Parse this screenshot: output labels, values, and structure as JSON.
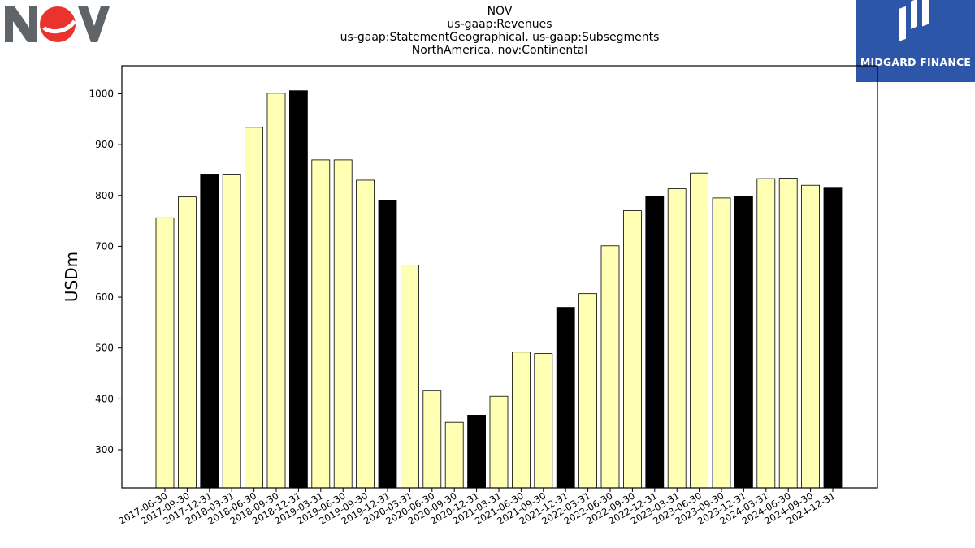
{
  "title_lines": [
    "NOV",
    "us-gaap:Revenues",
    "us-gaap:StatementGeographical, us-gaap:Subsegments",
    "NorthAmerica, nov:Continental"
  ],
  "logos": {
    "left_text": "NOV",
    "right_text": "MIDGARD FINANCE",
    "right_bg_color": "#2d55a8"
  },
  "chart_data": {
    "type": "bar",
    "title": "NOV\nus-gaap:Revenues\nus-gaap:StatementGeographical, us-gaap:Subsegments\nNorthAmerica, nov:Continental",
    "xlabel": "",
    "ylabel": "USDm",
    "ylim": [
      225,
      1055
    ],
    "yticks": [
      300,
      400,
      500,
      600,
      700,
      800,
      900,
      1000
    ],
    "grid": false,
    "colors": {
      "default": "#ffffb3",
      "year_end": "#000000",
      "edge": "#000000"
    },
    "categories": [
      "2017-06-30",
      "2017-09-30",
      "2017-12-31",
      "2018-03-31",
      "2018-06-30",
      "2018-09-30",
      "2018-12-31",
      "2019-03-31",
      "2019-06-30",
      "2019-09-30",
      "2019-12-31",
      "2020-03-31",
      "2020-06-30",
      "2020-09-30",
      "2020-12-31",
      "2021-03-31",
      "2021-06-30",
      "2021-09-30",
      "2021-12-31",
      "2022-03-31",
      "2022-06-30",
      "2022-09-30",
      "2022-12-31",
      "2023-03-31",
      "2023-06-30",
      "2023-09-30",
      "2023-12-31",
      "2024-03-31",
      "2024-06-30",
      "2024-09-30",
      "2024-12-31"
    ],
    "values": [
      756,
      797,
      842,
      842,
      934,
      1001,
      1006,
      870,
      870,
      830,
      791,
      663,
      417,
      354,
      368,
      405,
      492,
      489,
      580,
      607,
      701,
      770,
      799,
      813,
      844,
      795,
      799,
      833,
      834,
      820,
      816
    ]
  }
}
